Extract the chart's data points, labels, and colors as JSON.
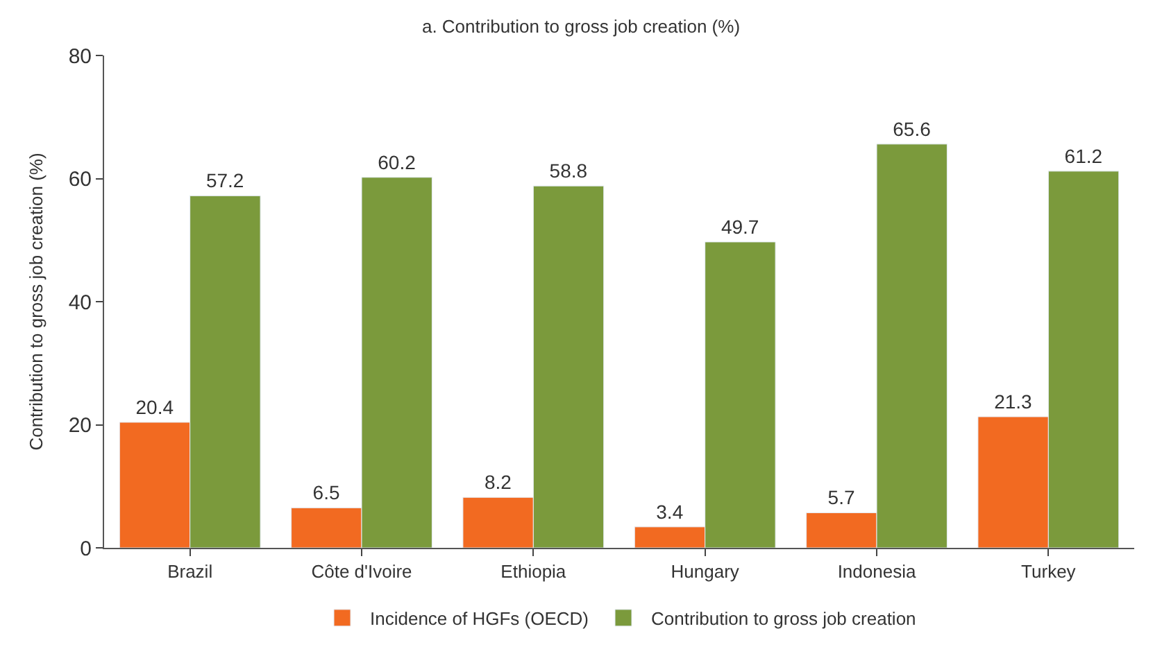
{
  "chart_data": {
    "type": "bar",
    "title": "a. Contribution to gross job creation (%)",
    "ylabel": "Contribution to gross job creation (%)",
    "categories": [
      "Brazil",
      "Côte d'Ivoire",
      "Ethiopia",
      "Hungary",
      "Indonesia",
      "Turkey"
    ],
    "series": [
      {
        "name": "Incidence of HGFs (OECD)",
        "color": "#f26a21",
        "values": [
          20.4,
          6.5,
          8.2,
          3.4,
          5.7,
          21.3
        ]
      },
      {
        "name": "Contribution to gross job creation",
        "color": "#7b9a3c",
        "values": [
          57.2,
          60.2,
          58.8,
          49.7,
          65.6,
          61.2
        ]
      }
    ],
    "ylim": [
      0,
      80
    ],
    "yticks": [
      0,
      20,
      40,
      60,
      80
    ],
    "legend": "bottom",
    "data_labels": true
  }
}
